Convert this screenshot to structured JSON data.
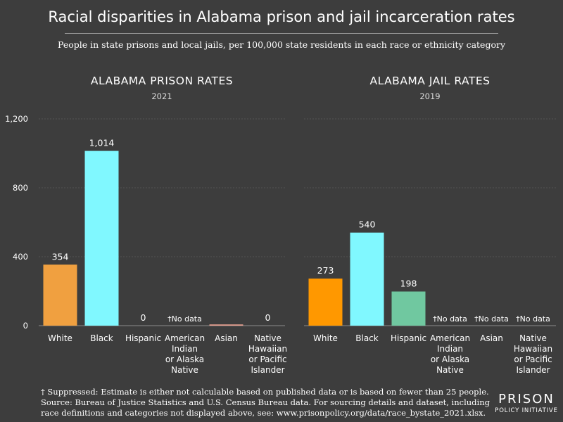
{
  "title": "Racial disparities in Alabama prison and jail incarceration rates",
  "subtitle": "People in state prisons and local jails, per 100,000 state residents in each race or ethnicity category",
  "footnote": {
    "line1": "† Suppressed: Estimate is either not calculable based on published data or is based on fewer than 25 people.",
    "line2": "Source: Bureau of Justice Statistics and U.S. Census Bureau data. For sourcing details and dataset, including",
    "line3": "race definitions and categories not displayed above, see: www.prisonpolicy.org/data/race_bystate_2021.xlsx."
  },
  "logo": {
    "line1": "PRISON",
    "line2": "POLICY INITIATIVE"
  },
  "chart_data": [
    {
      "type": "bar",
      "title": "ALABAMA PRISON RATES",
      "subtitle": "2021",
      "ylim": [
        0,
        1200
      ],
      "yticks": [
        0,
        400,
        800,
        1200
      ],
      "ytick_labels": [
        "0",
        "400",
        "800",
        "1,200"
      ],
      "grid": true,
      "categories": [
        "White",
        "Black",
        "Hispanic",
        "American Indian or Alaska Native",
        "Asian",
        "Native Hawaiian or Pacific Islander"
      ],
      "category_lines": [
        [
          "White"
        ],
        [
          "Black"
        ],
        [
          "Hispanic"
        ],
        [
          "American",
          "Indian",
          "or Alaska",
          "Native"
        ],
        [
          "Asian"
        ],
        [
          "Native",
          "Hawaiian",
          "or Pacific",
          "Islander"
        ]
      ],
      "values": [
        354,
        1014,
        0,
        null,
        7,
        0
      ],
      "value_labels": [
        "354",
        "1,014",
        "0",
        "†No data",
        "",
        "0"
      ],
      "colors": [
        "#f0a040",
        "#80f8ff",
        "#70c8a0",
        "#b0b0b0",
        "#e8a090",
        "#b8a0e0"
      ]
    },
    {
      "type": "bar",
      "title": "ALABAMA JAIL RATES",
      "subtitle": "2019",
      "ylim": [
        0,
        1200
      ],
      "grid": true,
      "categories": [
        "White",
        "Black",
        "Hispanic",
        "American Indian or Alaska Native",
        "Asian",
        "Native Hawaiian or Pacific Islander"
      ],
      "category_lines": [
        [
          "White"
        ],
        [
          "Black"
        ],
        [
          "Hispanic"
        ],
        [
          "American",
          "Indian",
          "or Alaska",
          "Native"
        ],
        [
          "Asian"
        ],
        [
          "Native",
          "Hawaiian",
          "or Pacific",
          "Islander"
        ]
      ],
      "values": [
        273,
        540,
        198,
        null,
        null,
        null
      ],
      "value_labels": [
        "273",
        "540",
        "198",
        "†No data",
        "†No data",
        "†No data"
      ],
      "colors": [
        "#ff9800",
        "#80f8ff",
        "#70c8a0",
        "#b0b0b0",
        "#e8a090",
        "#b8a0e0"
      ]
    }
  ]
}
